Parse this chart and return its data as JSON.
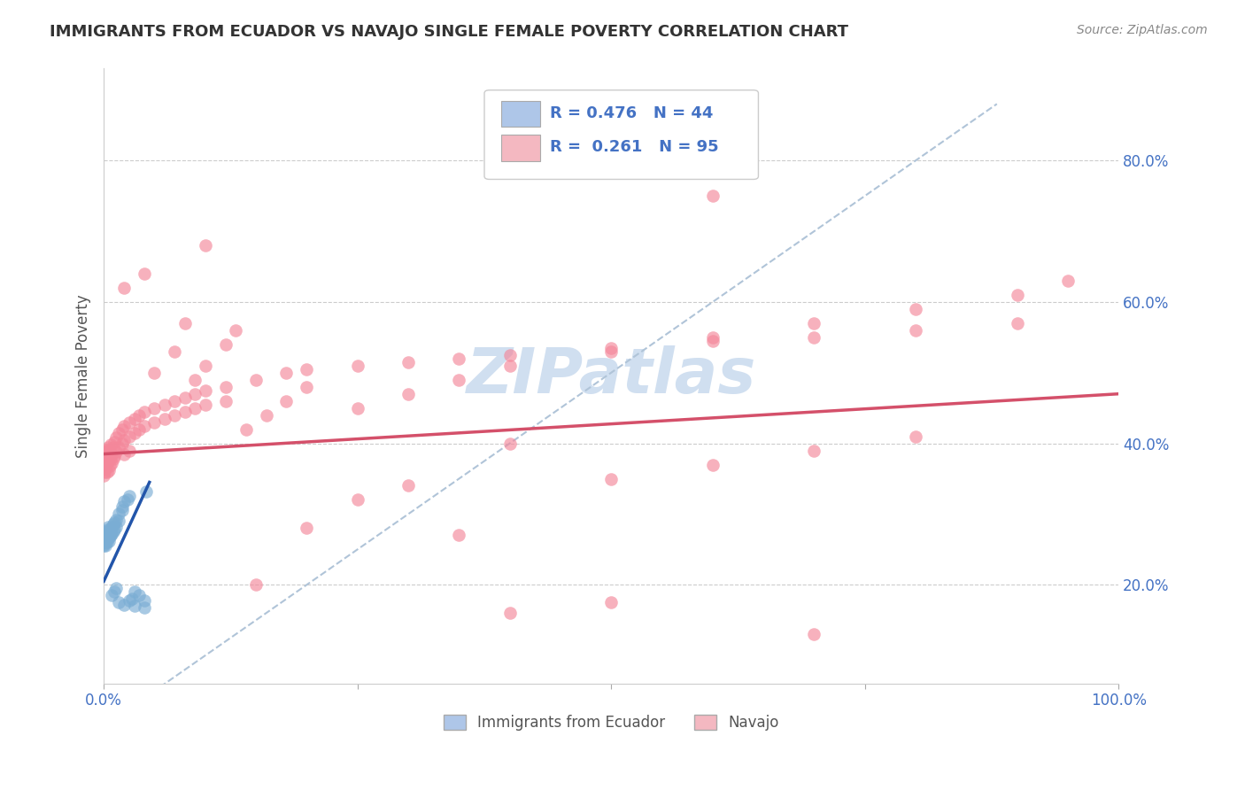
{
  "title": "IMMIGRANTS FROM ECUADOR VS NAVAJO SINGLE FEMALE POVERTY CORRELATION CHART",
  "source": "Source: ZipAtlas.com",
  "ylabel": "Single Female Poverty",
  "ytick_labels": [
    "20.0%",
    "40.0%",
    "60.0%",
    "80.0%"
  ],
  "ytick_values": [
    0.2,
    0.4,
    0.6,
    0.8
  ],
  "xlim": [
    0.0,
    1.0
  ],
  "ylim": [
    0.06,
    0.93
  ],
  "legend_items": [
    {
      "label": "Immigrants from Ecuador",
      "color": "#aec6e8"
    },
    {
      "label": "Navajo",
      "color": "#f4b8c1"
    }
  ],
  "ecuador_color": "#7aadd4",
  "navajo_color": "#f4879a",
  "ecuador_line_color": "#2255aa",
  "navajo_line_color": "#d4506a",
  "diagonal_color": "#b0c4d8",
  "watermark_text": "ZIPatlas",
  "watermark_color": "#d0dff0",
  "ecuador_points": [
    [
      0.0,
      0.27
    ],
    [
      0.0,
      0.265
    ],
    [
      0.0,
      0.255
    ],
    [
      0.0,
      0.26
    ],
    [
      0.0,
      0.272
    ],
    [
      0.001,
      0.268
    ],
    [
      0.001,
      0.258
    ],
    [
      0.001,
      0.262
    ],
    [
      0.001,
      0.275
    ],
    [
      0.002,
      0.27
    ],
    [
      0.002,
      0.26
    ],
    [
      0.002,
      0.265
    ],
    [
      0.002,
      0.255
    ],
    [
      0.003,
      0.268
    ],
    [
      0.003,
      0.26
    ],
    [
      0.003,
      0.272
    ],
    [
      0.003,
      0.278
    ],
    [
      0.004,
      0.265
    ],
    [
      0.004,
      0.275
    ],
    [
      0.004,
      0.282
    ],
    [
      0.005,
      0.272
    ],
    [
      0.005,
      0.262
    ],
    [
      0.006,
      0.275
    ],
    [
      0.006,
      0.268
    ],
    [
      0.007,
      0.278
    ],
    [
      0.007,
      0.27
    ],
    [
      0.008,
      0.282
    ],
    [
      0.008,
      0.272
    ],
    [
      0.009,
      0.285
    ],
    [
      0.009,
      0.275
    ],
    [
      0.01,
      0.288
    ],
    [
      0.01,
      0.278
    ],
    [
      0.012,
      0.292
    ],
    [
      0.012,
      0.282
    ],
    [
      0.015,
      0.3
    ],
    [
      0.015,
      0.29
    ],
    [
      0.018,
      0.31
    ],
    [
      0.018,
      0.305
    ],
    [
      0.02,
      0.318
    ],
    [
      0.023,
      0.32
    ],
    [
      0.025,
      0.325
    ],
    [
      0.028,
      0.18
    ],
    [
      0.03,
      0.19
    ],
    [
      0.035,
      0.185
    ],
    [
      0.04,
      0.178
    ],
    [
      0.042,
      0.332
    ],
    [
      0.008,
      0.185
    ],
    [
      0.01,
      0.19
    ],
    [
      0.012,
      0.195
    ],
    [
      0.015,
      0.175
    ],
    [
      0.02,
      0.172
    ],
    [
      0.025,
      0.178
    ],
    [
      0.03,
      0.17
    ],
    [
      0.04,
      0.168
    ]
  ],
  "navajo_points": [
    [
      0.0,
      0.375
    ],
    [
      0.0,
      0.39
    ],
    [
      0.0,
      0.355
    ],
    [
      0.0,
      0.365
    ],
    [
      0.001,
      0.38
    ],
    [
      0.001,
      0.36
    ],
    [
      0.001,
      0.37
    ],
    [
      0.002,
      0.385
    ],
    [
      0.002,
      0.365
    ],
    [
      0.002,
      0.375
    ],
    [
      0.003,
      0.39
    ],
    [
      0.003,
      0.372
    ],
    [
      0.003,
      0.36
    ],
    [
      0.004,
      0.395
    ],
    [
      0.004,
      0.375
    ],
    [
      0.005,
      0.388
    ],
    [
      0.005,
      0.362
    ],
    [
      0.006,
      0.392
    ],
    [
      0.006,
      0.368
    ],
    [
      0.007,
      0.398
    ],
    [
      0.007,
      0.378
    ],
    [
      0.008,
      0.385
    ],
    [
      0.008,
      0.372
    ],
    [
      0.009,
      0.395
    ],
    [
      0.009,
      0.378
    ],
    [
      0.01,
      0.402
    ],
    [
      0.01,
      0.382
    ],
    [
      0.012,
      0.408
    ],
    [
      0.012,
      0.388
    ],
    [
      0.015,
      0.415
    ],
    [
      0.015,
      0.395
    ],
    [
      0.018,
      0.42
    ],
    [
      0.018,
      0.4
    ],
    [
      0.02,
      0.425
    ],
    [
      0.02,
      0.405
    ],
    [
      0.02,
      0.385
    ],
    [
      0.025,
      0.43
    ],
    [
      0.025,
      0.41
    ],
    [
      0.025,
      0.39
    ],
    [
      0.03,
      0.435
    ],
    [
      0.03,
      0.415
    ],
    [
      0.035,
      0.44
    ],
    [
      0.035,
      0.42
    ],
    [
      0.04,
      0.445
    ],
    [
      0.04,
      0.425
    ],
    [
      0.05,
      0.45
    ],
    [
      0.05,
      0.43
    ],
    [
      0.06,
      0.455
    ],
    [
      0.06,
      0.435
    ],
    [
      0.07,
      0.46
    ],
    [
      0.07,
      0.44
    ],
    [
      0.08,
      0.465
    ],
    [
      0.08,
      0.445
    ],
    [
      0.09,
      0.47
    ],
    [
      0.09,
      0.45
    ],
    [
      0.1,
      0.475
    ],
    [
      0.1,
      0.455
    ],
    [
      0.12,
      0.48
    ],
    [
      0.12,
      0.46
    ],
    [
      0.15,
      0.49
    ],
    [
      0.18,
      0.5
    ],
    [
      0.2,
      0.505
    ],
    [
      0.25,
      0.51
    ],
    [
      0.3,
      0.515
    ],
    [
      0.35,
      0.52
    ],
    [
      0.4,
      0.525
    ],
    [
      0.5,
      0.535
    ],
    [
      0.6,
      0.545
    ],
    [
      0.7,
      0.55
    ],
    [
      0.8,
      0.56
    ],
    [
      0.9,
      0.57
    ],
    [
      0.1,
      0.68
    ],
    [
      0.15,
      0.2
    ],
    [
      0.2,
      0.28
    ],
    [
      0.25,
      0.32
    ],
    [
      0.3,
      0.34
    ],
    [
      0.35,
      0.27
    ],
    [
      0.4,
      0.4
    ],
    [
      0.5,
      0.35
    ],
    [
      0.6,
      0.37
    ],
    [
      0.7,
      0.39
    ],
    [
      0.8,
      0.41
    ],
    [
      0.05,
      0.5
    ],
    [
      0.07,
      0.53
    ],
    [
      0.08,
      0.57
    ],
    [
      0.09,
      0.49
    ],
    [
      0.1,
      0.51
    ],
    [
      0.12,
      0.54
    ],
    [
      0.13,
      0.56
    ],
    [
      0.14,
      0.42
    ],
    [
      0.16,
      0.44
    ],
    [
      0.18,
      0.46
    ],
    [
      0.2,
      0.48
    ],
    [
      0.25,
      0.45
    ],
    [
      0.3,
      0.47
    ],
    [
      0.35,
      0.49
    ],
    [
      0.4,
      0.51
    ],
    [
      0.5,
      0.53
    ],
    [
      0.6,
      0.55
    ],
    [
      0.7,
      0.57
    ],
    [
      0.8,
      0.59
    ],
    [
      0.9,
      0.61
    ],
    [
      0.95,
      0.63
    ],
    [
      0.02,
      0.62
    ],
    [
      0.04,
      0.64
    ],
    [
      0.6,
      0.75
    ],
    [
      0.7,
      0.13
    ],
    [
      0.4,
      0.16
    ],
    [
      0.5,
      0.175
    ]
  ]
}
